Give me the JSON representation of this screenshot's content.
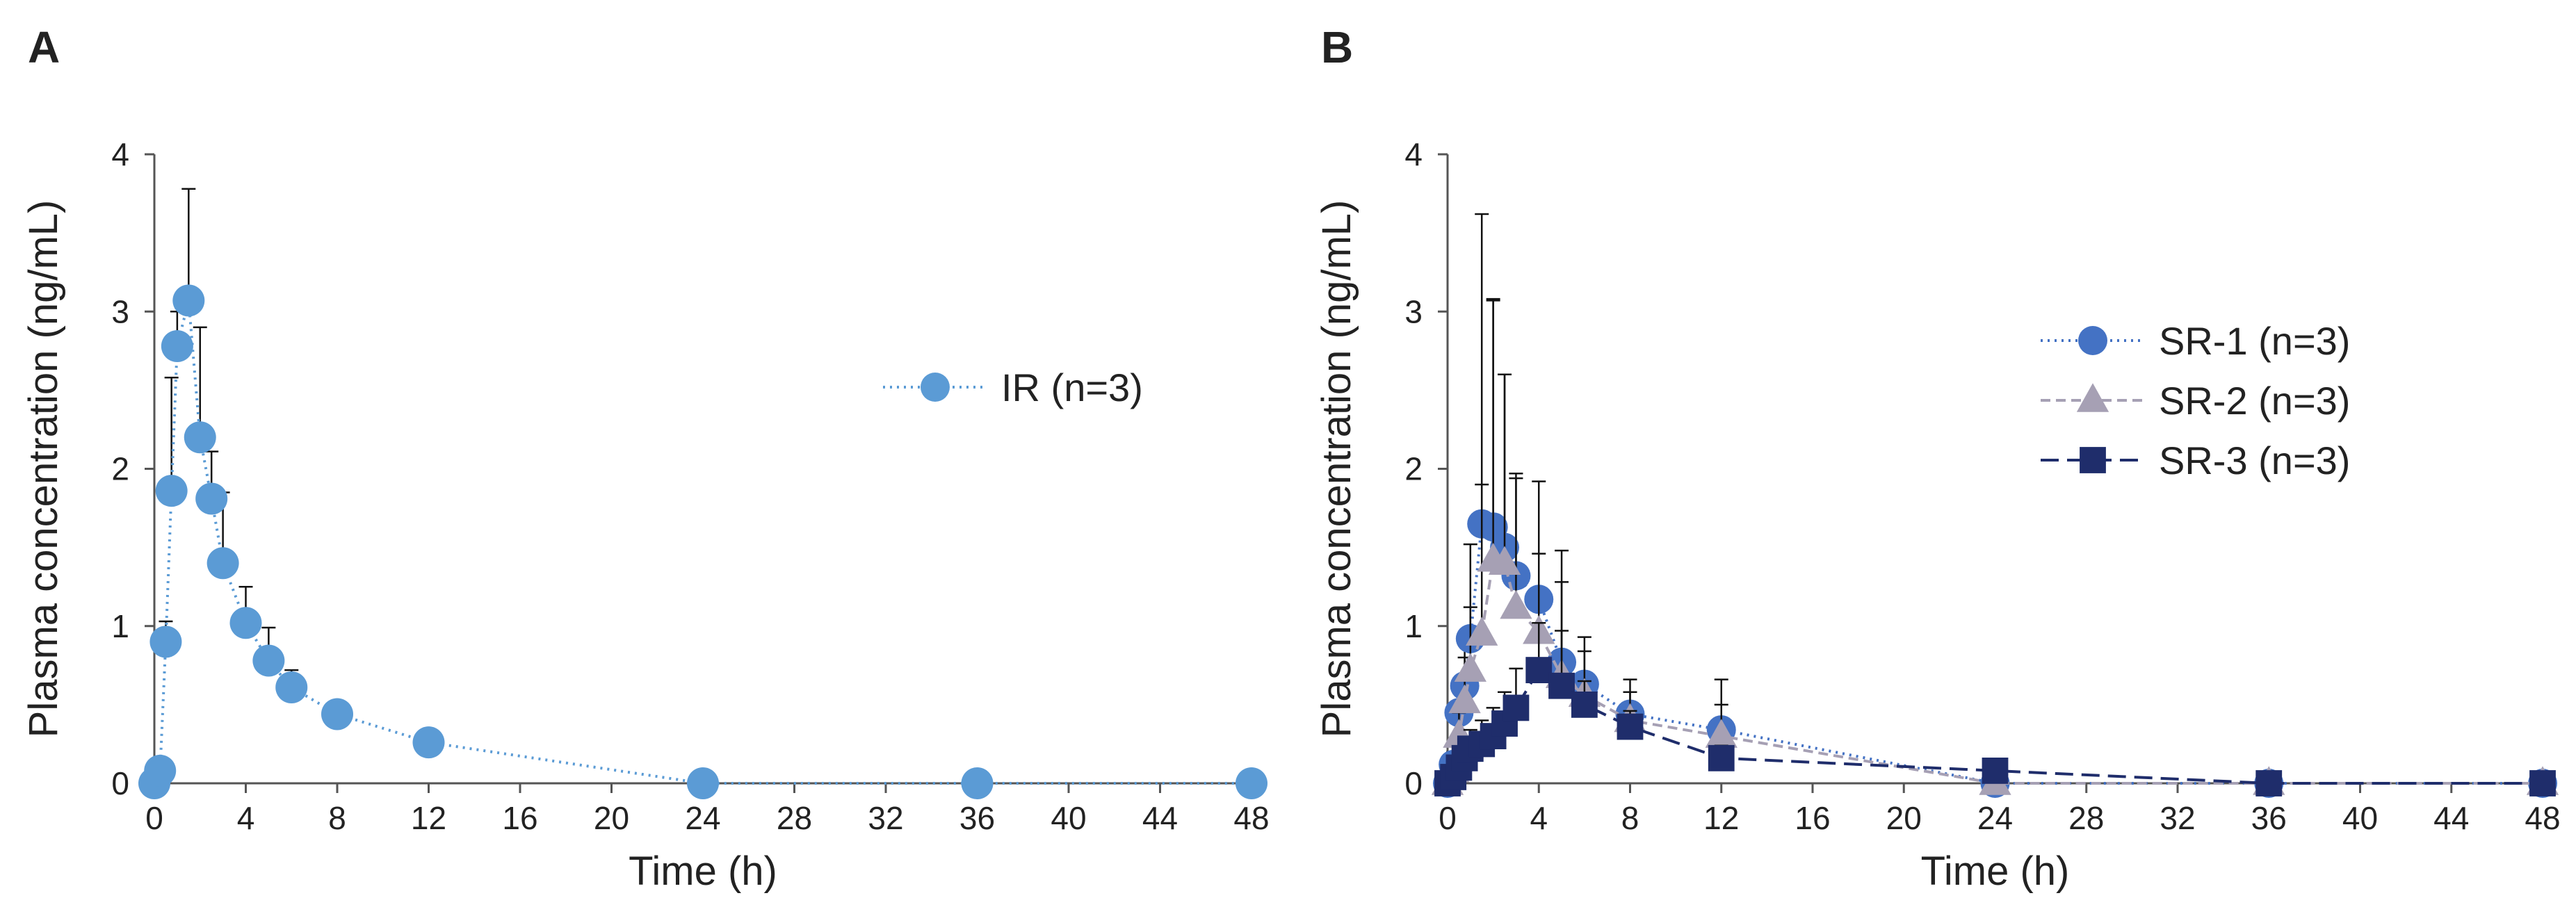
{
  "chart_data": [
    {
      "panel": "A",
      "type": "line",
      "xlabel": "Time (h)",
      "ylabel": "Plasma concentration  (ng/mL)",
      "xlim": [
        0,
        48
      ],
      "ylim": [
        0,
        4
      ],
      "xticks": [
        "0",
        "4",
        "8",
        "12",
        "16",
        "20",
        "24",
        "28",
        "32",
        "36",
        "40",
        "44",
        "48"
      ],
      "yticks": [
        "0",
        "1",
        "2",
        "3",
        "4"
      ],
      "grid": false,
      "legend_position": "right",
      "series": [
        {
          "name": "IR (n=3)",
          "marker": "circle",
          "line": "dotted",
          "color": "#5B9BD5",
          "x": [
            0,
            0.25,
            0.5,
            0.75,
            1,
            1.5,
            2,
            2.5,
            3,
            4,
            5,
            6,
            8,
            12,
            24,
            36,
            48
          ],
          "y": [
            0,
            0.08,
            0.9,
            1.86,
            2.78,
            3.07,
            2.2,
            1.81,
            1.4,
            1.02,
            0.78,
            0.61,
            0.44,
            0.26,
            0,
            0,
            0
          ],
          "err": [
            0,
            0.04,
            0.13,
            0.72,
            0.22,
            0.71,
            0.7,
            0.3,
            0.45,
            0.23,
            0.21,
            0.11,
            0.05,
            0.06,
            0,
            0,
            0
          ]
        }
      ]
    },
    {
      "panel": "B",
      "type": "line",
      "xlabel": "Time (h)",
      "ylabel": "Plasma concentration  (ng/mL)",
      "xlim": [
        0,
        48
      ],
      "ylim": [
        0,
        4
      ],
      "xticks": [
        "0",
        "4",
        "8",
        "12",
        "16",
        "20",
        "24",
        "28",
        "32",
        "36",
        "40",
        "44",
        "48"
      ],
      "yticks": [
        "0",
        "1",
        "2",
        "3",
        "4"
      ],
      "grid": false,
      "legend_position": "right",
      "series": [
        {
          "name": "SR-1 (n=3)",
          "marker": "circle",
          "line": "dotted",
          "color": "#4472C4",
          "x": [
            0,
            0.25,
            0.5,
            0.75,
            1,
            1.5,
            2,
            2.5,
            3,
            4,
            5,
            6,
            8,
            12,
            24,
            36,
            48
          ],
          "y": [
            0,
            0.12,
            0.45,
            0.62,
            0.92,
            1.65,
            1.63,
            1.5,
            1.32,
            1.17,
            0.77,
            0.63,
            0.44,
            0.34,
            0,
            0,
            0
          ],
          "err": [
            0,
            0.08,
            0.2,
            0.3,
            0.6,
            1.97,
            1.45,
            1.1,
            0.65,
            0.75,
            0.71,
            0.3,
            0.22,
            0.32,
            0,
            0,
            0
          ]
        },
        {
          "name": "SR-2 (n=3)",
          "marker": "triangle",
          "line": "dashed",
          "color": "#A6A0B4",
          "x": [
            0,
            0.25,
            0.5,
            0.75,
            1,
            1.5,
            2,
            2.5,
            3,
            4,
            5,
            6,
            8,
            12,
            24,
            36,
            48
          ],
          "y": [
            0,
            0.08,
            0.3,
            0.52,
            0.72,
            0.95,
            1.42,
            1.4,
            1.12,
            0.96,
            0.68,
            0.56,
            0.4,
            0.3,
            0,
            0,
            0
          ],
          "err": [
            0,
            0.05,
            0.15,
            0.28,
            0.4,
            0.95,
            1.65,
            1.2,
            0.82,
            0.5,
            0.6,
            0.28,
            0.18,
            0.2,
            0,
            0,
            0
          ]
        },
        {
          "name": "SR-3 (n=3)",
          "marker": "square",
          "line": "longdash",
          "color": "#1F2D6B",
          "x": [
            0,
            0.25,
            0.5,
            0.75,
            1,
            1.5,
            2,
            2.5,
            3,
            4,
            5,
            6,
            8,
            12,
            24,
            36,
            48
          ],
          "y": [
            0,
            0.04,
            0.1,
            0.16,
            0.22,
            0.25,
            0.3,
            0.38,
            0.48,
            0.72,
            0.62,
            0.5,
            0.36,
            0.16,
            0.08,
            0,
            0
          ],
          "err": [
            0,
            0.03,
            0.06,
            0.1,
            0.12,
            0.15,
            0.18,
            0.2,
            0.25,
            0.3,
            0.35,
            0.15,
            0.1,
            0.08,
            0.05,
            0,
            0
          ]
        }
      ]
    }
  ]
}
